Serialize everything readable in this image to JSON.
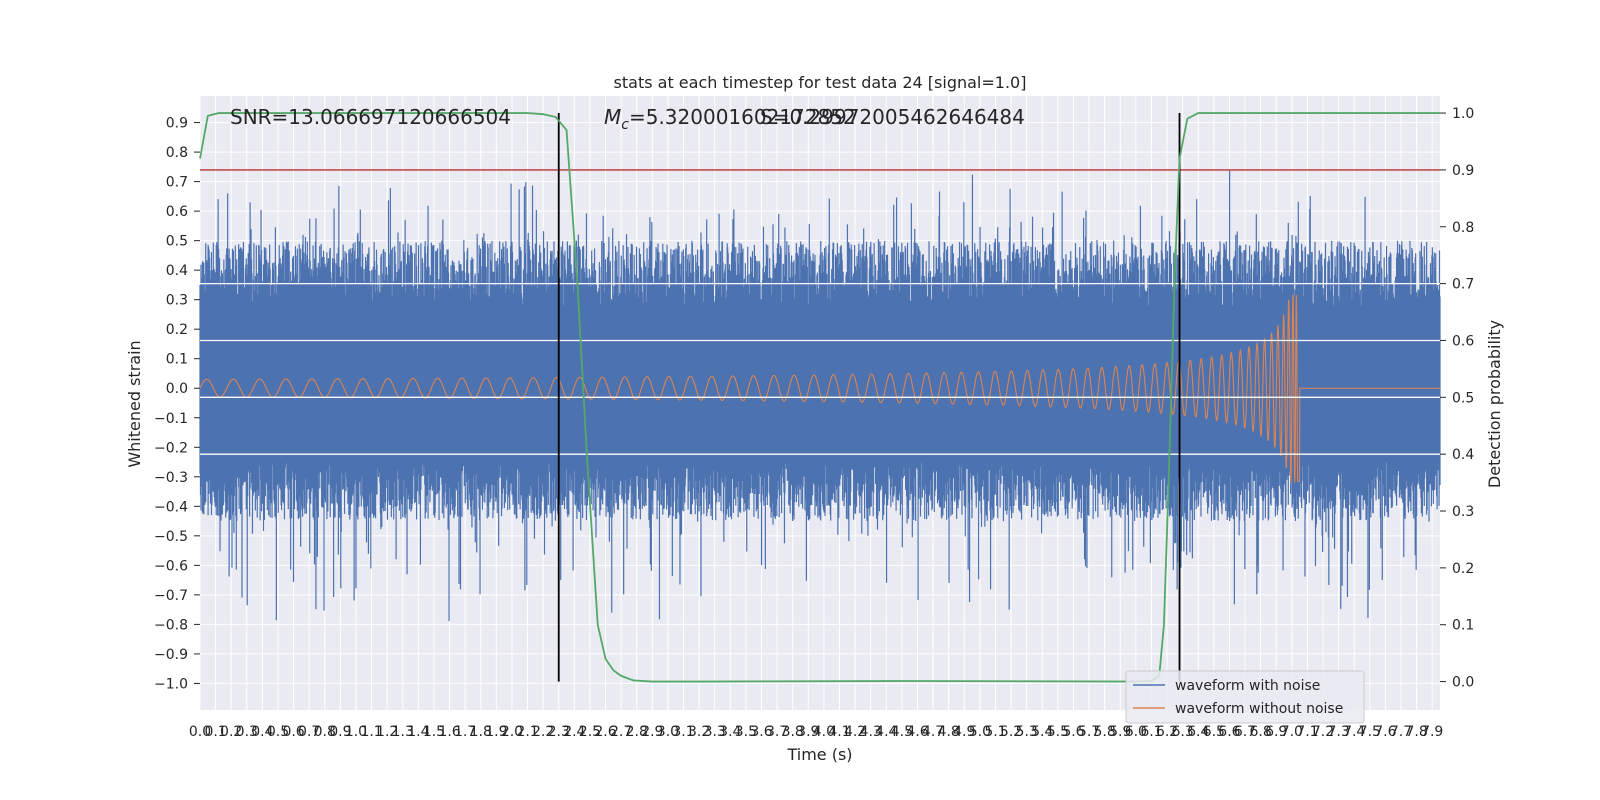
{
  "chart_data": {
    "type": "line",
    "title": "stats at each timestep for test data 24 [signal=1.0]",
    "xlabel": "Time (s)",
    "ylabel": "Whitened strain",
    "y2label": "Detection probability",
    "xlim": [
      0,
      7.95
    ],
    "ylim": [
      -1.09,
      0.99
    ],
    "y2lim": [
      -0.05,
      1.03
    ],
    "x_ticks": [
      "0.0",
      "0.1",
      "0.2",
      "0.3",
      "0.4",
      "0.5",
      "0.6",
      "0.7",
      "0.8",
      "0.9",
      "1.0",
      "1.1",
      "1.2",
      "1.3",
      "1.4",
      "1.5",
      "1.6",
      "1.7",
      "1.8",
      "1.9",
      "2.0",
      "2.1",
      "2.2",
      "2.3",
      "2.4",
      "2.5",
      "2.6",
      "2.7",
      "2.8",
      "2.9",
      "3.0",
      "3.1",
      "3.2",
      "3.3",
      "3.4",
      "3.5",
      "3.6",
      "3.7",
      "3.8",
      "3.9",
      "4.0",
      "4.1",
      "4.2",
      "4.3",
      "4.4",
      "4.5",
      "4.6",
      "4.7",
      "4.8",
      "4.9",
      "5.0",
      "5.1",
      "5.2",
      "5.3",
      "5.4",
      "5.5",
      "5.6",
      "5.7",
      "5.8",
      "5.9",
      "6.0",
      "6.1",
      "6.2",
      "6.3",
      "6.4",
      "6.5",
      "6.6",
      "6.7",
      "6.8",
      "6.9",
      "7.0",
      "7.1",
      "7.2",
      "7.3",
      "7.4",
      "7.5",
      "7.6",
      "7.7",
      "7.8",
      "7.9"
    ],
    "y_ticks": [
      "0.9",
      "0.8",
      "0.7",
      "0.6",
      "0.5",
      "0.4",
      "0.3",
      "0.2",
      "0.1",
      "0.0",
      "−0.1",
      "−0.2",
      "−0.3",
      "−0.4",
      "−0.5",
      "−0.6",
      "−0.7",
      "−0.8",
      "−0.9",
      "−1.0"
    ],
    "y2_ticks": [
      "1.0",
      "0.9",
      "0.8",
      "0.7",
      "0.6",
      "0.5",
      "0.4",
      "0.3",
      "0.2",
      "0.1",
      "0.0"
    ],
    "annotations": {
      "snr": "SNR=13.066697120666504",
      "mc_prefix": "M",
      "mc_sub": "c",
      "mc_value": "=5.320001602172852",
      "overlap": "S=0.29972005462646484"
    },
    "threshold_y2": 0.9,
    "event_lines_x": [
      2.3,
      6.28
    ],
    "series": [
      {
        "name": "waveform with noise",
        "color": "#4c72b0",
        "kind": "noise",
        "envelope_pos": 0.5,
        "envelope_neg": -0.45,
        "peak_max": 0.9,
        "peak_min": -1.0
      },
      {
        "name": "waveform without noise",
        "color": "#dd8452",
        "kind": "chirp",
        "amp_start": 0.03,
        "peak": 0.32,
        "merger_x": 7.05,
        "post_value": 0.0
      },
      {
        "name": "Detection probability",
        "color": "#55a868",
        "axis": "y2",
        "x": [
          0.0,
          0.05,
          0.12,
          0.3,
          1.0,
          2.0,
          2.1,
          2.2,
          2.28,
          2.35,
          2.42,
          2.48,
          2.55,
          2.6,
          2.65,
          2.7,
          2.78,
          2.9,
          3.2,
          4.5,
          6.0,
          6.1,
          6.15,
          6.18,
          6.21,
          6.25,
          6.28,
          6.33,
          6.4,
          6.5,
          7.0,
          7.95
        ],
        "y": [
          0.92,
          0.995,
          1.0,
          1.0,
          1.0,
          1.0,
          1.0,
          0.998,
          0.993,
          0.97,
          0.7,
          0.4,
          0.1,
          0.04,
          0.02,
          0.01,
          0.002,
          0.0,
          0.0,
          0.001,
          0.0,
          0.001,
          0.01,
          0.1,
          0.35,
          0.72,
          0.92,
          0.99,
          1.0,
          1.0,
          1.0,
          1.0
        ]
      }
    ],
    "horizontal_lines_y2": [
      0.7,
      0.6,
      0.5,
      0.4
    ],
    "legend": {
      "placement": "lower-right",
      "entries": [
        "waveform with noise",
        "waveform without noise"
      ]
    },
    "grid": true,
    "colors": {
      "noise": "#4c72b0",
      "clean": "#dd8452",
      "prob": "#55a868",
      "threshold": "#c44e52",
      "event": "#000000",
      "plot_bg": "#eaeaf2"
    }
  }
}
